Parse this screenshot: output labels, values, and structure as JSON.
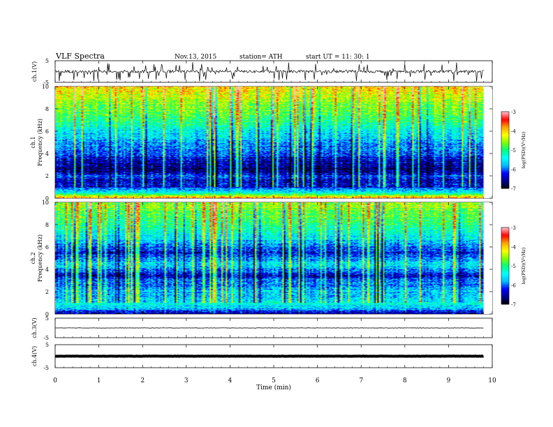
{
  "header": {
    "title": "VLF  Spectra",
    "date": "Nov.13, 2015",
    "station": "station= ATH",
    "start": "start  UT  =   11: 30: 1"
  },
  "chart_data": [
    {
      "type": "line",
      "panel": "ch1",
      "ylabel": "ch.1(V)",
      "ylim": [
        -5,
        5
      ],
      "yticks": [
        "5",
        "-5"
      ],
      "baseline": 0,
      "note": "waveform amplitude trace with frequent spikes"
    },
    {
      "type": "heatmap",
      "panel": "ch1-spectrogram",
      "ylabel": "ch.1\nFrequency (kHz)",
      "ylabel_top": "ch.1",
      "ylabel_bottom": "Frequency  (kHz)",
      "ylim": [
        0,
        10
      ],
      "yticks": [
        "0",
        "2",
        "4",
        "6",
        "8",
        "10"
      ],
      "xlim": [
        0,
        9.8
      ],
      "colorbar": {
        "label": "log(PSD)(V²/Hz)",
        "range": [
          -7,
          -3
        ],
        "ticks": [
          "-3",
          "-4",
          "-5",
          "-6",
          "-7"
        ]
      },
      "profile_kHz_level": [
        [
          0.0,
          -3.8
        ],
        [
          0.5,
          -5.5
        ],
        [
          1.0,
          -6.3
        ],
        [
          1.5,
          -6.4
        ],
        [
          2.0,
          -6.1
        ],
        [
          2.5,
          -6.7
        ],
        [
          3.0,
          -6.6
        ],
        [
          3.5,
          -6.3
        ],
        [
          4.0,
          -6.1
        ],
        [
          4.5,
          -5.9
        ],
        [
          5.0,
          -5.8
        ],
        [
          5.5,
          -5.6
        ],
        [
          6.0,
          -5.4
        ],
        [
          6.5,
          -5.2
        ],
        [
          7.0,
          -5.0
        ],
        [
          7.5,
          -4.8
        ],
        [
          8.0,
          -4.7
        ],
        [
          8.5,
          -4.6
        ],
        [
          9.0,
          -4.4
        ],
        [
          9.5,
          -4.2
        ],
        [
          10.0,
          -4.1
        ]
      ]
    },
    {
      "type": "heatmap",
      "panel": "ch2-spectrogram",
      "ylabel_top": "ch.2",
      "ylabel_bottom": "Frequency  (kHz)",
      "ylim": [
        0,
        10
      ],
      "yticks": [
        "0",
        "2",
        "4",
        "6",
        "8",
        "10"
      ],
      "xlim": [
        0,
        9.8
      ],
      "colorbar": {
        "label": "log(PSD)(V²/Hz)",
        "range": [
          -7,
          -3
        ],
        "ticks": [
          "-3",
          "-4",
          "-5",
          "-6",
          "-7"
        ]
      },
      "profile_kHz_level": [
        [
          0.0,
          -6.6
        ],
        [
          0.5,
          -5.6
        ],
        [
          1.0,
          -5.4
        ],
        [
          1.5,
          -5.6
        ],
        [
          2.0,
          -5.7
        ],
        [
          2.5,
          -5.9
        ],
        [
          3.0,
          -6.0
        ],
        [
          3.5,
          -6.4
        ],
        [
          4.0,
          -5.8
        ],
        [
          4.5,
          -5.5
        ],
        [
          5.0,
          -5.9
        ],
        [
          5.5,
          -6.3
        ],
        [
          6.0,
          -6.0
        ],
        [
          6.5,
          -5.7
        ],
        [
          7.0,
          -5.4
        ],
        [
          7.5,
          -5.2
        ],
        [
          8.0,
          -5.0
        ],
        [
          8.5,
          -4.9
        ],
        [
          9.0,
          -4.8
        ],
        [
          9.5,
          -4.6
        ],
        [
          10.0,
          -4.5
        ]
      ]
    },
    {
      "type": "line",
      "panel": "ch3",
      "ylabel": "ch.3(V)",
      "ylim": [
        -5,
        5
      ],
      "yticks": [
        "5",
        "-5"
      ],
      "baseline": 0
    },
    {
      "type": "line",
      "panel": "ch4",
      "ylabel": "ch.4(V)",
      "ylim": [
        -5,
        5
      ],
      "yticks": [
        "5",
        "-5"
      ],
      "baseline": 0
    }
  ],
  "xaxis": {
    "label": "Time  (min)",
    "ticks": [
      "0",
      "1",
      "2",
      "3",
      "4",
      "5",
      "6",
      "7",
      "8",
      "9",
      "10"
    ],
    "xlim": [
      0,
      10
    ]
  },
  "colors": {
    "scale": [
      "#000000",
      "#00008b",
      "#0000ff",
      "#00bfff",
      "#00ffff",
      "#00ff80",
      "#7fff00",
      "#ffff00",
      "#ffa500",
      "#ff0000",
      "#ffc0cb"
    ]
  }
}
